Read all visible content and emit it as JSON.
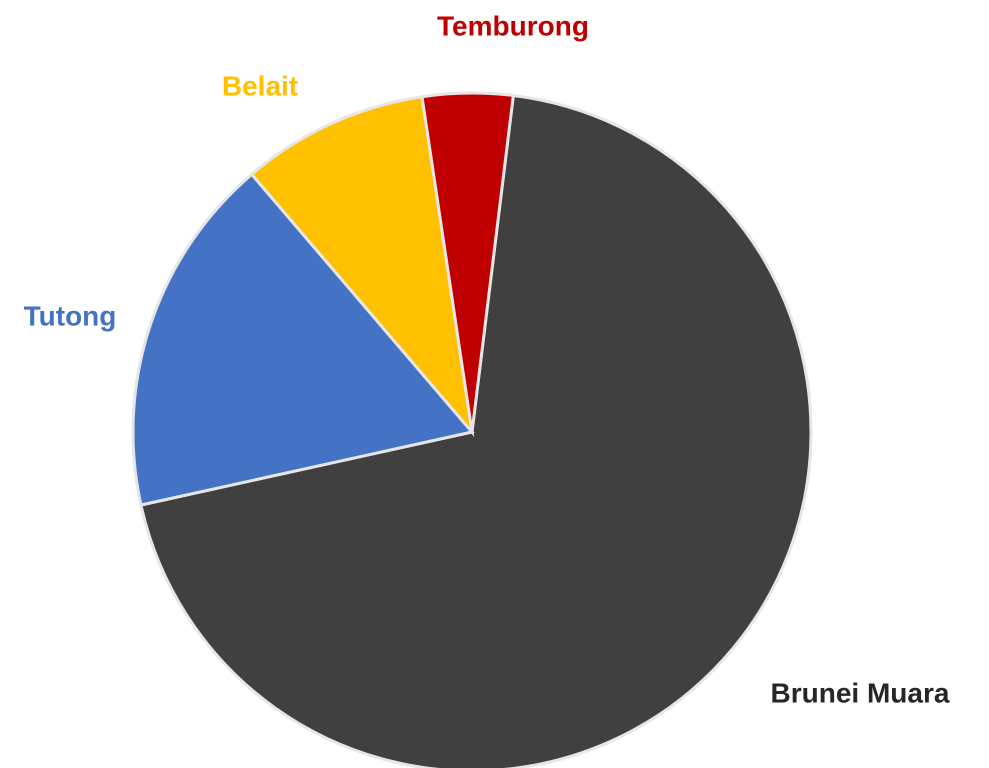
{
  "chart_data": {
    "type": "pie",
    "categories": [
      "Brunei Muara",
      "Tutong",
      "Belait",
      "Temburong"
    ],
    "values": [
      69.6,
      17.2,
      8.9,
      4.3
    ],
    "colors": [
      "#404040",
      "#4472c4",
      "#ffc000",
      "#c00000"
    ]
  }
}
